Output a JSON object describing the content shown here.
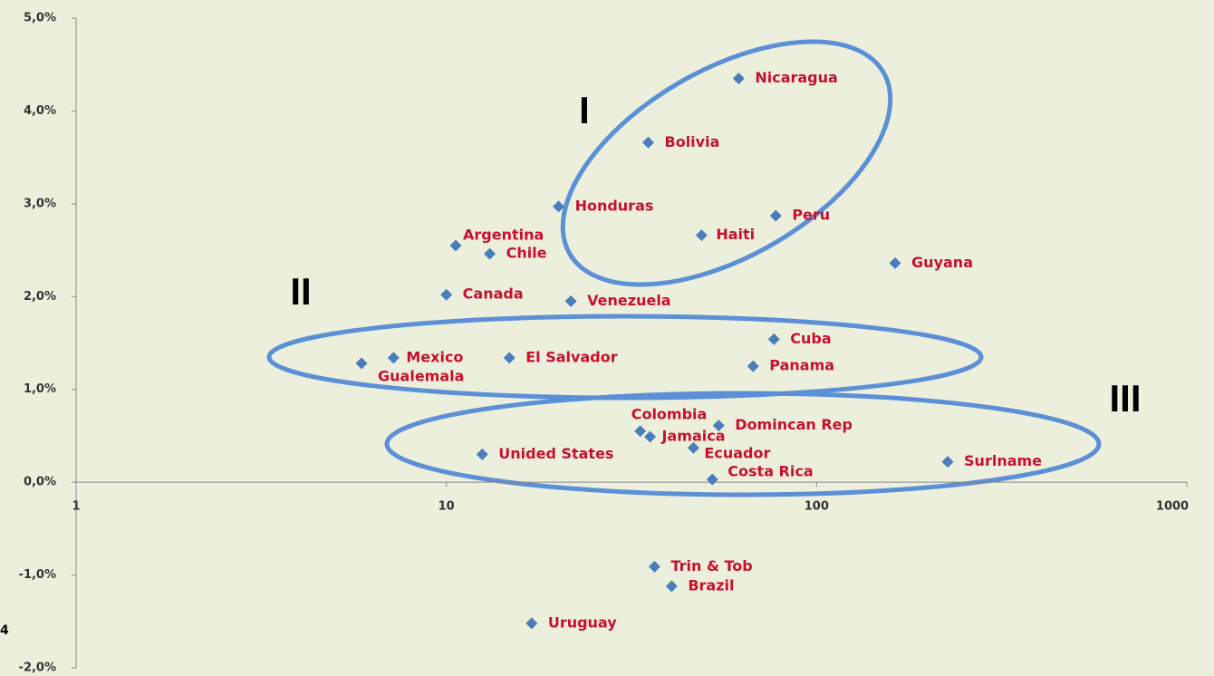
{
  "chart_data": {
    "type": "scatter",
    "annotations": [
      "I",
      "II",
      "III",
      "4"
    ],
    "x_log": true,
    "xlim": [
      1,
      1000
    ],
    "xticks": [
      1,
      10,
      100,
      1000
    ],
    "ylim": [
      -2,
      5
    ],
    "yticks": [
      {
        "value": -2,
        "label": "-2,0%"
      },
      {
        "value": -1,
        "label": "-1,0%"
      },
      {
        "value": 0,
        "label": "0,0%"
      },
      {
        "value": 1,
        "label": "1,0%"
      },
      {
        "value": 2,
        "label": "2,0%"
      },
      {
        "value": 3,
        "label": "3,0%"
      },
      {
        "value": 4,
        "label": "4,0%"
      },
      {
        "value": 5,
        "label": "5,0%"
      }
    ],
    "color": "#4a7ebb",
    "label_color": "#c8102e",
    "points": [
      {
        "name": "Nicaragua",
        "x": 61.6,
        "y": 4.35
      },
      {
        "name": "Bolivia",
        "x": 35.1,
        "y": 3.66
      },
      {
        "name": "Honduras",
        "x": 20.1,
        "y": 2.97
      },
      {
        "name": "Peru",
        "x": 77.6,
        "y": 2.87
      },
      {
        "name": "Haiti",
        "x": 48.9,
        "y": 2.66
      },
      {
        "name": "Argentina",
        "x": 10.6,
        "y": 2.55
      },
      {
        "name": "Chile",
        "x": 13.1,
        "y": 2.46
      },
      {
        "name": "Guyana",
        "x": 163,
        "y": 2.36
      },
      {
        "name": "Canada",
        "x": 10.0,
        "y": 2.02
      },
      {
        "name": "Venezuela",
        "x": 21.7,
        "y": 1.95
      },
      {
        "name": "Cuba",
        "x": 76.7,
        "y": 1.54
      },
      {
        "name": "Mexico",
        "x": 7.2,
        "y": 1.34
      },
      {
        "name": "Gualemala",
        "x": 5.9,
        "y": 1.28
      },
      {
        "name": "El Salvador",
        "x": 14.8,
        "y": 1.34
      },
      {
        "name": "Panama",
        "x": 67.4,
        "y": 1.25
      },
      {
        "name": "Colombia",
        "x": 33.4,
        "y": 0.55
      },
      {
        "name": "Domincan Rep",
        "x": 54.4,
        "y": 0.61
      },
      {
        "name": "Jamaica",
        "x": 35.5,
        "y": 0.49
      },
      {
        "name": "Ecuador",
        "x": 46.5,
        "y": 0.37
      },
      {
        "name": "Unided States",
        "x": 12.5,
        "y": 0.3
      },
      {
        "name": "Surlname",
        "x": 226,
        "y": 0.22
      },
      {
        "name": "Costa Rica",
        "x": 52.3,
        "y": 0.03
      },
      {
        "name": "Trin & Tob",
        "x": 36.5,
        "y": -0.91
      },
      {
        "name": "Brazil",
        "x": 40.6,
        "y": -1.12
      },
      {
        "name": "Uruguay",
        "x": 17.0,
        "y": -1.52
      }
    ]
  }
}
